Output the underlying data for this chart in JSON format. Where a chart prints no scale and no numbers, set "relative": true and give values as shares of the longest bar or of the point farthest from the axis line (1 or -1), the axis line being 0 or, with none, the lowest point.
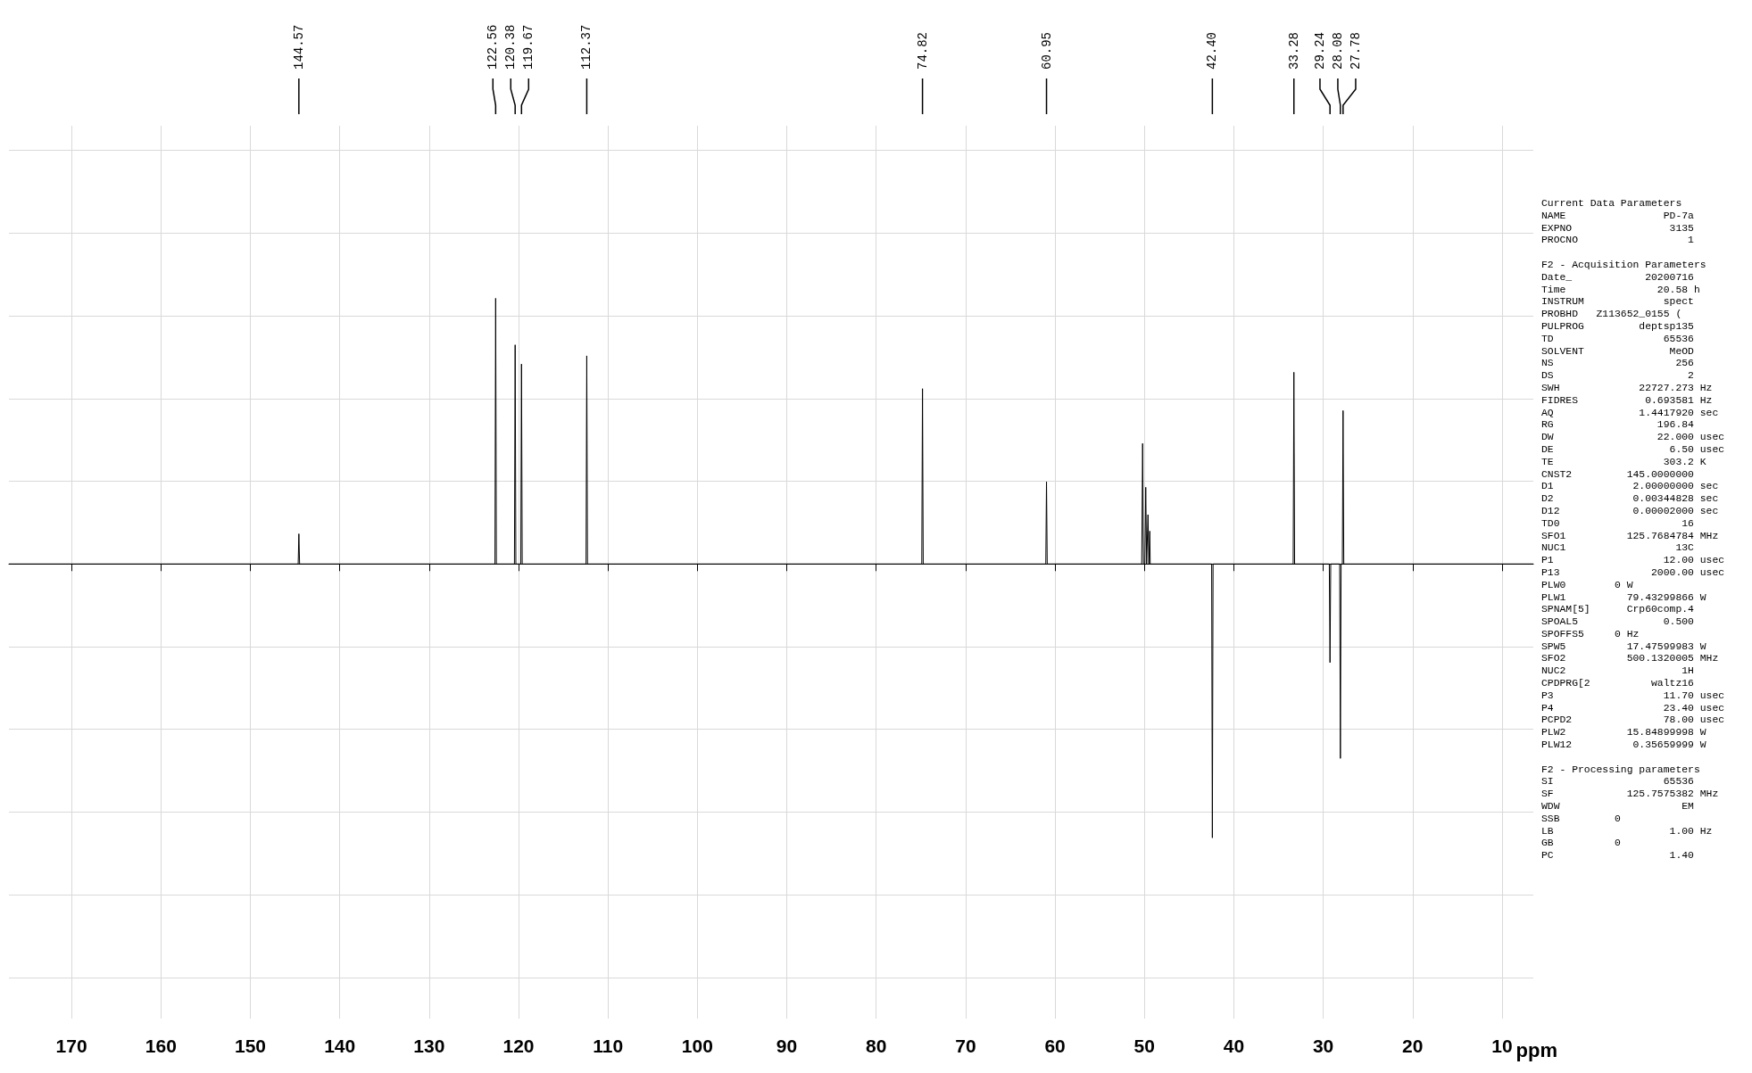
{
  "chart_data": {
    "type": "line",
    "relative": true,
    "xlabel": "ppm",
    "xlim": [
      177,
      6.5
    ],
    "xticks": [
      170,
      160,
      150,
      140,
      130,
      120,
      110,
      100,
      90,
      80,
      70,
      60,
      50,
      40,
      30,
      20,
      10
    ],
    "grid": true,
    "marker": "none",
    "x": [
      177,
      144.65,
      144.57,
      144.49,
      122.64,
      122.56,
      122.48,
      120.46,
      120.38,
      120.3,
      119.75,
      119.67,
      119.59,
      112.45,
      112.37,
      112.29,
      74.9,
      74.82,
      74.74,
      61.03,
      60.95,
      60.87,
      50.3,
      50.2,
      50.1,
      49.95,
      49.85,
      49.75,
      49.68,
      49.6,
      49.5,
      49.45,
      49.4,
      49.35,
      42.48,
      42.4,
      42.32,
      33.36,
      33.28,
      33.2,
      29.32,
      29.24,
      29.16,
      28.16,
      28.08,
      28.0,
      27.86,
      27.78,
      27.7,
      6.5
    ],
    "series": [
      {
        "color": "#000000",
        "values": [
          0,
          0,
          0.11,
          0,
          0,
          0.97,
          0,
          0,
          0.8,
          0,
          0,
          0.73,
          0,
          0,
          0.76,
          0,
          0,
          0.64,
          0,
          0,
          0.3,
          0,
          0,
          0.44,
          0,
          0,
          0.28,
          0,
          0,
          0.18,
          0,
          0,
          0.12,
          0,
          0,
          -1,
          0,
          0,
          0.7,
          0,
          0,
          -0.36,
          0,
          0,
          -0.71,
          0,
          0,
          0.56,
          0,
          0
        ]
      }
    ],
    "annotations": [
      {
        "text": "144.57",
        "x": 144.57
      },
      {
        "text": "122.56",
        "x": 122.56
      },
      {
        "text": "120.38",
        "x": 120.38
      },
      {
        "text": "119.67",
        "x": 119.67
      },
      {
        "text": "112.37",
        "x": 112.37
      },
      {
        "text": "74.82",
        "x": 74.82
      },
      {
        "text": "60.95",
        "x": 60.95
      },
      {
        "text": "42.40",
        "x": 42.4
      },
      {
        "text": "33.28",
        "x": 33.28
      },
      {
        "text": "29.24",
        "x": 29.24
      },
      {
        "text": "28.08",
        "x": 28.08
      },
      {
        "text": "27.78",
        "x": 27.78
      },
      "Current Data Parameters\nNAME                PD-7a\nEXPNO                3135\nPROCNO                  1",
      "F2 - Acquisition Parameters\nDate_            20200716\nTime               20.58 h\nINSTRUM             spect\nPROBHD   Z113652_0155 (\nPULPROG         deptsp135\nTD                  65536\nSOLVENT              MeOD\nNS                    256\nDS                      2\nSWH             22727.273 Hz\nFIDRES           0.693581 Hz\nAQ              1.4417920 sec\nRG                 196.84\nDW                 22.000 usec\nDE                   6.50 usec\nTE                  303.2 K\nCNST2         145.0000000\nD1             2.00000000 sec\nD2             0.00344828 sec\nD12            0.00002000 sec\nTD0                    16\nSFO1          125.7684784 MHz\nNUC1                  13C\nP1                  12.00 usec\nP13               2000.00 usec\nPLW0        0 W\nPLW1          79.43299866 W\nSPNAM[5]      Crp60comp.4\nSPOAL5              0.500\nSPOFFS5     0 Hz\nSPW5          17.47599983 W\nSFO2          500.1320005 MHz\nNUC2                   1H\nCPDPRG[2          waltz16\nP3                  11.70 usec\nP4                  23.40 usec\nPCPD2               78.00 usec\nPLW2          15.84899998 W\nPLW12          0.35659999 W",
      "F2 - Processing parameters\nSI                  65536\nSF            125.7575382 MHz\nWDW                    EM\nSSB         0\nLB                   1.00 Hz\nGB          0\nPC                   1.40"
    ]
  }
}
